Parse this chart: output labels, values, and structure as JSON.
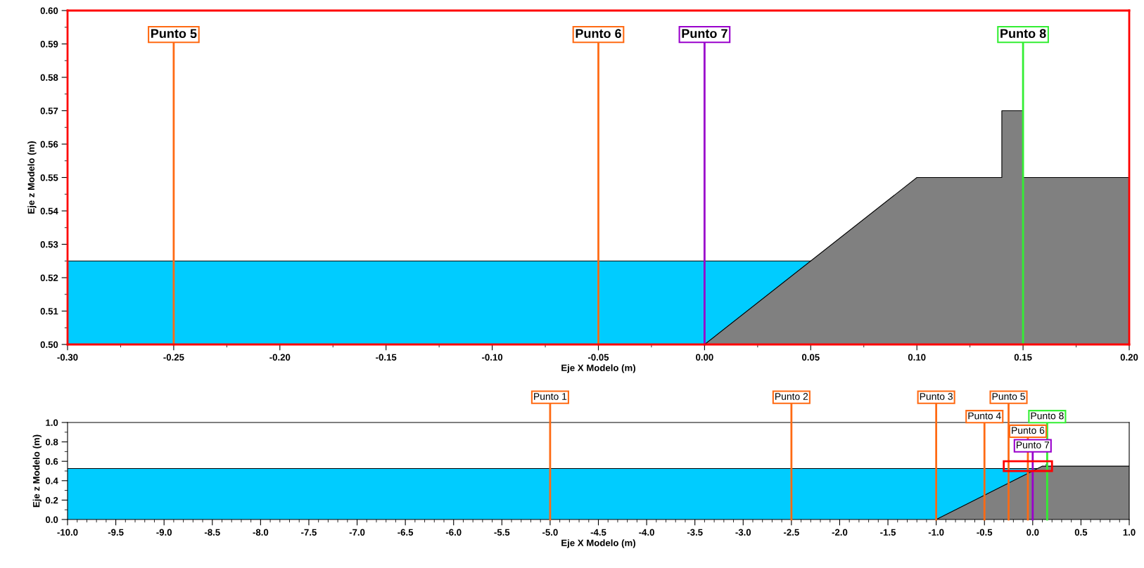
{
  "chart_data": [
    {
      "type": "area",
      "xlabel": "Eje X Modelo (m)",
      "ylabel": "Eje z Modelo (m)",
      "xlim": [
        -0.3,
        0.2
      ],
      "ylim": [
        0.5,
        0.6
      ],
      "xticks": [
        {
          "value": -0.3,
          "label": "-0.30"
        },
        {
          "value": -0.25,
          "label": "-0.25"
        },
        {
          "value": -0.2,
          "label": "-0.20"
        },
        {
          "value": -0.15,
          "label": "-0.15"
        },
        {
          "value": -0.1,
          "label": "-0.10"
        },
        {
          "value": -0.05,
          "label": "-0.05"
        },
        {
          "value": 0,
          "label": "0.00"
        },
        {
          "value": 0.05,
          "label": "0.05"
        },
        {
          "value": 0.1,
          "label": "0.10"
        },
        {
          "value": 0.15,
          "label": "0.15"
        },
        {
          "value": 0.2,
          "label": "0.20"
        }
      ],
      "yticks": [
        {
          "value": 0.5,
          "label": "0.50"
        },
        {
          "value": 0.51,
          "label": "0.51"
        },
        {
          "value": 0.52,
          "label": "0.52"
        },
        {
          "value": 0.53,
          "label": "0.53"
        },
        {
          "value": 0.54,
          "label": "0.54"
        },
        {
          "value": 0.55,
          "label": "0.55"
        },
        {
          "value": 0.56,
          "label": "0.56"
        },
        {
          "value": 0.57,
          "label": "0.57"
        },
        {
          "value": 0.58,
          "label": "0.58"
        },
        {
          "value": 0.59,
          "label": "0.59"
        },
        {
          "value": 0.6,
          "label": "0.60"
        }
      ],
      "series": [
        {
          "color": "#00ccff",
          "x": [
            -0.3,
            0.05
          ],
          "values": [
            0.525,
            0.525
          ]
        },
        {
          "color": "#808080",
          "x": [
            0,
            0.1,
            0.14,
            0.14,
            0.15,
            0.15,
            0.2
          ],
          "values": [
            0.5,
            0.55,
            0.55,
            0.57,
            0.57,
            0.55,
            0.55
          ]
        }
      ],
      "ref_lines": [
        {
          "axis": "x",
          "value": -0.25,
          "label": "Punto 5",
          "color": "#ff6a13"
        },
        {
          "axis": "x",
          "value": -0.05,
          "label": "Punto 6",
          "color": "#ff6a13"
        },
        {
          "axis": "x",
          "value": 0,
          "label": "Punto 7",
          "color": "#9900cc"
        },
        {
          "axis": "x",
          "value": 0.15,
          "label": "Punto 8",
          "color": "#33ee33"
        }
      ],
      "grid": false,
      "legend": false
    },
    {
      "type": "area",
      "xlabel": "Eje X Modelo (m)",
      "ylabel": "Eje z Modelo (m)",
      "xlim": [
        -10,
        1
      ],
      "ylim": [
        0,
        1
      ],
      "xticks": [
        {
          "value": -10,
          "label": "-10.0"
        },
        {
          "value": -9.5,
          "label": "-9.5"
        },
        {
          "value": -9,
          "label": "-9.0"
        },
        {
          "value": -8.5,
          "label": "-8.5"
        },
        {
          "value": -8,
          "label": "-8.0"
        },
        {
          "value": -7.5,
          "label": "-7.5"
        },
        {
          "value": -7,
          "label": "-7.0"
        },
        {
          "value": -6.5,
          "label": "-6.5"
        },
        {
          "value": -6,
          "label": "-6.0"
        },
        {
          "value": -5.5,
          "label": "-5.5"
        },
        {
          "value": -5,
          "label": "-5.0"
        },
        {
          "value": -4.5,
          "label": "-4.5"
        },
        {
          "value": -4,
          "label": "-4.0"
        },
        {
          "value": -3.5,
          "label": "-3.5"
        },
        {
          "value": -3,
          "label": "-3.0"
        },
        {
          "value": -2.5,
          "label": "-2.5"
        },
        {
          "value": -2,
          "label": "-2.0"
        },
        {
          "value": -1.5,
          "label": "-1.5"
        },
        {
          "value": -1,
          "label": "-1.0"
        },
        {
          "value": -0.5,
          "label": "-0.5"
        },
        {
          "value": 0,
          "label": "0.0"
        },
        {
          "value": 0.5,
          "label": "0.5"
        },
        {
          "value": 1,
          "label": "1.0"
        }
      ],
      "yticks": [
        {
          "value": 0,
          "label": "0.0"
        },
        {
          "value": 0.2,
          "label": "0.2"
        },
        {
          "value": 0.4,
          "label": "0.4"
        },
        {
          "value": 0.6,
          "label": "0.6"
        },
        {
          "value": 0.8,
          "label": "0.8"
        },
        {
          "value": 1,
          "label": "1.0"
        }
      ],
      "series": [
        {
          "color": "#00ccff",
          "x": [
            -10,
            0.05
          ],
          "values": [
            0.525,
            0.525
          ]
        },
        {
          "color": "#808080",
          "x": [
            -1,
            0.1,
            0.14,
            0.14,
            0.15,
            0.15,
            1
          ],
          "values": [
            0,
            0.55,
            0.55,
            0.57,
            0.57,
            0.55,
            0.55
          ]
        }
      ],
      "ref_lines": [
        {
          "axis": "x",
          "value": -5,
          "label": "Punto 1",
          "color": "#ff6a13"
        },
        {
          "axis": "x",
          "value": -2.5,
          "label": "Punto 2",
          "color": "#ff6a13"
        },
        {
          "axis": "x",
          "value": -1,
          "label": "Punto 3",
          "color": "#ff6a13"
        },
        {
          "axis": "x",
          "value": -0.5,
          "label": "Punto 4",
          "color": "#ff6a13"
        },
        {
          "axis": "x",
          "value": -0.25,
          "label": "Punto 5",
          "color": "#ff6a13"
        },
        {
          "axis": "x",
          "value": -0.05,
          "label": "Punto 6",
          "color": "#ff6a13"
        },
        {
          "axis": "x",
          "value": 0,
          "label": "Punto 7",
          "color": "#9900cc"
        },
        {
          "axis": "x",
          "value": 0.15,
          "label": "Punto 8",
          "color": "#33ee33"
        }
      ],
      "grid": false,
      "legend": false
    }
  ]
}
